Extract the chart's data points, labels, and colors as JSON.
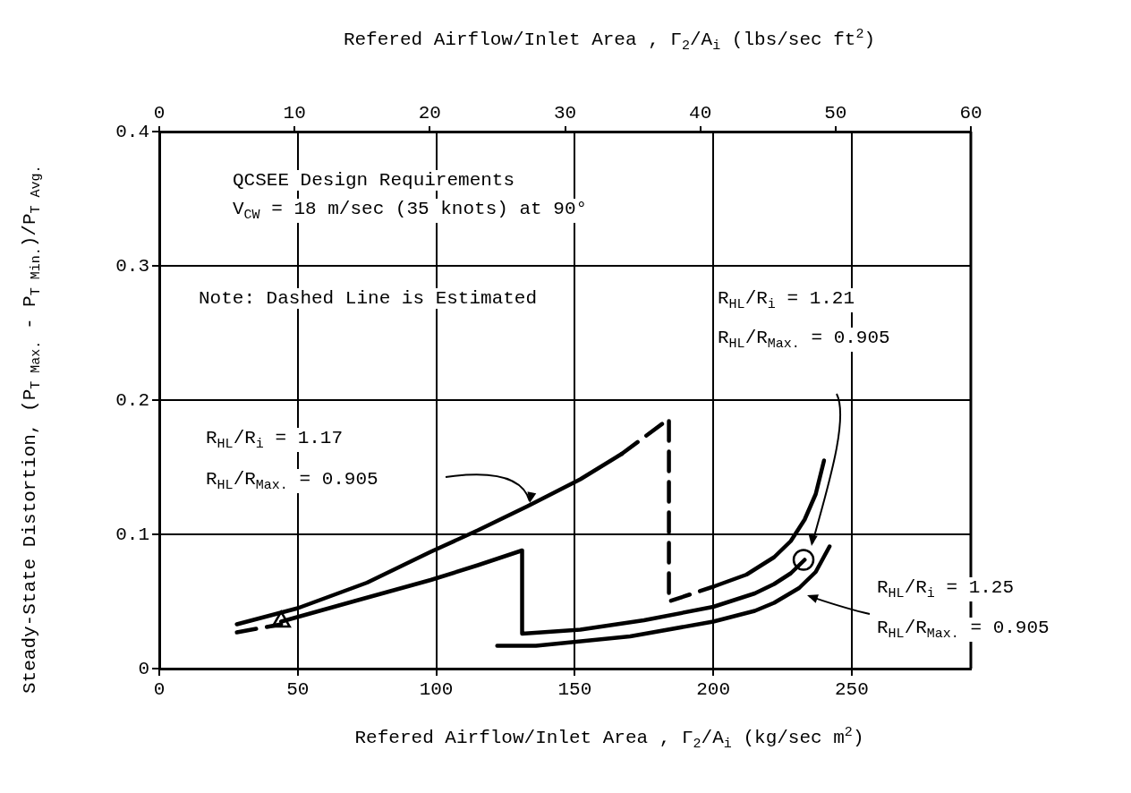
{
  "chart_data": {
    "type": "line",
    "xlabel": "Refered Airflow/Inlet Area , Γ$_{2}$/A$_{i}$ (kg/sec m$^{2}$)",
    "x2label": "Refered Airflow/Inlet Area , Γ$_{2}$/A$_{i}$ (lbs/sec ft$^{2}$)",
    "ylabel": "Steady-State Distortion, (P$_{T Max.}$ - P$_{T Min.}$)/P$_{T Avg.}$",
    "xlim": [
      0,
      293
    ],
    "xticks": [
      0,
      50,
      100,
      150,
      200,
      250
    ],
    "x2lim": [
      0,
      60
    ],
    "x2ticks": [
      0,
      10,
      20,
      30,
      40,
      50,
      60
    ],
    "ylim": [
      0,
      0.4
    ],
    "yticks": [
      0,
      0.1,
      0.2,
      0.3,
      0.4
    ],
    "grid": true,
    "legend": false,
    "annotations": [
      "QCSEE Design Requirements",
      "V$_{CW}$ = 18 m/sec (35 knots) at 90°",
      "Note: Dashed Line is Estimated",
      "R$_{HL}$/R$_{i}$ = 1.17",
      "R$_{HL}$/R$_{Max.}$ = 0.905",
      "R$_{HL}$/R$_{i}$ = 1.21",
      "R$_{HL}$/R$_{Max.}$ = 0.905",
      "R$_{HL}$/R$_{i}$ = 1.25",
      "R$_{HL}$/R$_{Max.}$ = 0.905"
    ],
    "series": [
      {
        "type": "line",
        "color": "#000000",
        "line_style": "solid",
        "x": [
          28,
          50,
          75,
          98,
          115,
          133,
          152,
          167
        ],
        "values": [
          0.033,
          0.045,
          0.064,
          0.087,
          0.103,
          0.121,
          0.141,
          0.16
        ]
      },
      {
        "type": "line",
        "color": "#000000",
        "line_style": "dashed",
        "x": [
          167,
          184,
          184,
          200
        ],
        "values": [
          0.16,
          0.186,
          0.05,
          0.061
        ]
      },
      {
        "type": "line",
        "color": "#000000",
        "line_style": "solid",
        "x": [
          200,
          212,
          222,
          228,
          233,
          237,
          240
        ],
        "values": [
          0.061,
          0.07,
          0.083,
          0.095,
          0.111,
          0.13,
          0.155
        ]
      },
      {
        "type": "line",
        "color": "#000000",
        "line_style": "dashed",
        "x": [
          28,
          44
        ],
        "values": [
          0.027,
          0.033
        ]
      },
      {
        "type": "line",
        "color": "#000000",
        "line_style": "solid",
        "x": [
          44,
          70,
          98,
          115,
          131,
          131,
          152,
          175,
          200,
          215,
          222,
          228,
          233
        ],
        "values": [
          0.035,
          0.05,
          0.066,
          0.077,
          0.088,
          0.026,
          0.029,
          0.036,
          0.046,
          0.056,
          0.063,
          0.071,
          0.081
        ]
      },
      {
        "type": "line",
        "color": "#000000",
        "line_style": "solid",
        "x": [
          122,
          136,
          170,
          200,
          215,
          222,
          231,
          237,
          242
        ],
        "values": [
          0.017,
          0.017,
          0.024,
          0.035,
          0.043,
          0.049,
          0.06,
          0.072,
          0.091
        ]
      },
      {
        "type": "scatter",
        "color": "#000000",
        "marker": "triangle",
        "x": [
          44
        ],
        "values": [
          0.035
        ]
      },
      {
        "type": "scatter",
        "color": "#000000",
        "marker": "circle",
        "x": [
          232.6
        ],
        "values": [
          0.081
        ]
      }
    ]
  }
}
